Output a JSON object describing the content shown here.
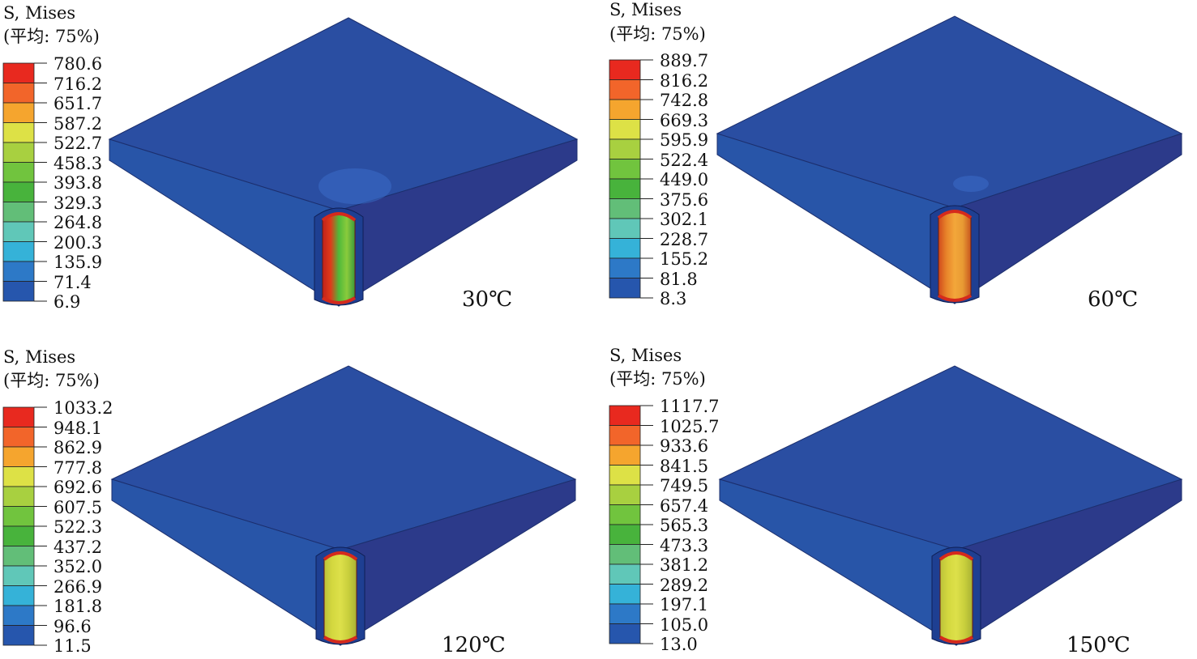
{
  "panels": [
    {
      "legend_title": "S, Mises",
      "legend_subtitle": "(平均: 75%)",
      "ticks": [
        "780.6",
        "716.2",
        "651.7",
        "587.2",
        "522.7",
        "458.3",
        "393.8",
        "329.3",
        "264.8",
        "200.3",
        "135.9",
        "71.4",
        "6.9"
      ],
      "temperature": "30℃",
      "hole_colors": [
        "#c0221b",
        "#e03a1a",
        "#4fb93a",
        "#8acb3c",
        "#3c9a3a"
      ]
    },
    {
      "legend_title": "S, Mises",
      "legend_subtitle": "(平均: 75%)",
      "ticks": [
        "889.7",
        "816.2",
        "742.8",
        "669.3",
        "595.9",
        "522.4",
        "449.0",
        "375.6",
        "302.1",
        "228.7",
        "155.2",
        "81.8",
        "8.3"
      ],
      "temperature": "60℃",
      "hole_colors": [
        "#d04a1c",
        "#e8842a",
        "#f3a73a",
        "#e89a33",
        "#c8561e"
      ]
    },
    {
      "legend_title": "S, Mises",
      "legend_subtitle": "(平均: 75%)",
      "ticks": [
        "1033.2",
        "948.1",
        "862.9",
        "777.8",
        "692.6",
        "607.5",
        "522.3",
        "437.2",
        "352.0",
        "266.9",
        "181.8",
        "96.6",
        "11.5"
      ],
      "temperature": "120℃",
      "hole_colors": [
        "#bcc23a",
        "#d4d83f",
        "#dde04a",
        "#c9cf3c",
        "#a8b234"
      ]
    },
    {
      "legend_title": "S, Mises",
      "legend_subtitle": "(平均: 75%)",
      "ticks": [
        "1117.7",
        "1025.7",
        "933.6",
        "841.5",
        "749.5",
        "657.4",
        "565.3",
        "473.3",
        "381.2",
        "289.2",
        "197.1",
        "105.0",
        "13.0"
      ],
      "temperature": "150℃",
      "hole_colors": [
        "#bcc23a",
        "#d4d83f",
        "#dde04a",
        "#c9cf3c",
        "#a8b234"
      ]
    }
  ],
  "colors": {
    "contour_bands": [
      "#e8291f",
      "#f2652a",
      "#f5a52e",
      "#dde146",
      "#a8d040",
      "#71c43e",
      "#48b33c",
      "#62be78",
      "#60c7b8",
      "#35b2d8",
      "#2d79c7",
      "#2656ad"
    ],
    "plate_top": "#2a4ea2",
    "plate_front": "#2855a8",
    "plate_side": "#2c3a8a"
  }
}
